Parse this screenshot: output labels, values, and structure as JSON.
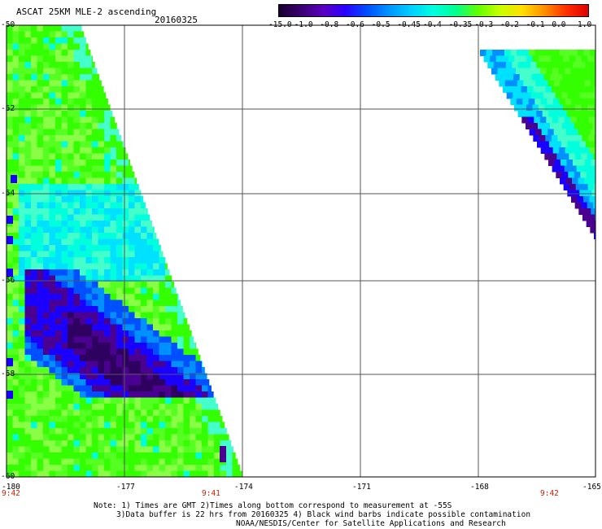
{
  "header": {
    "title": "ASCAT 25KM MLE-2 ascending",
    "date": "20160325"
  },
  "colorbar": {
    "labels": [
      "-15.0",
      "-1.0",
      "-0.8",
      "-0.6",
      "-0.5",
      "-0.45",
      "-0.4",
      "-0.35",
      "-0.3",
      "-0.2",
      "-0.1",
      "0.0",
      "1.0"
    ],
    "colors": [
      "#1a0030",
      "#3a0070",
      "#5a00c0",
      "#2a00ff",
      "#0050ff",
      "#0096ff",
      "#00d0ff",
      "#00ffe0",
      "#00ff90",
      "#60ff00",
      "#c8ff00",
      "#ffe000",
      "#ff9000",
      "#ff3000",
      "#e00000"
    ]
  },
  "axes": {
    "lat_labels": [
      "-50",
      "-52",
      "-54",
      "-56",
      "-58",
      "-60"
    ],
    "lon_labels": [
      "-180",
      "-177",
      "-174",
      "-171",
      "-168",
      "-165"
    ],
    "time_labels": [
      "9:42",
      "9:41",
      "9:42"
    ]
  },
  "notes": [
    "Note: 1) Times are GMT 2)Times along bottom correspond to measurement at -55S",
    "3)Data buffer is 22 hrs from 20160325 4) Black wind barbs indicate possible contamination",
    "NOAA/NESDIS/Center for Satellite Applications and Research"
  ],
  "colors": {
    "swath_green": "#33ff00",
    "swath_cyan": "#00ffdd",
    "swath_blue": "#1a00ff",
    "swath_purple": "#4a0090",
    "grid": "#555555",
    "time_text": "#cc2200"
  }
}
